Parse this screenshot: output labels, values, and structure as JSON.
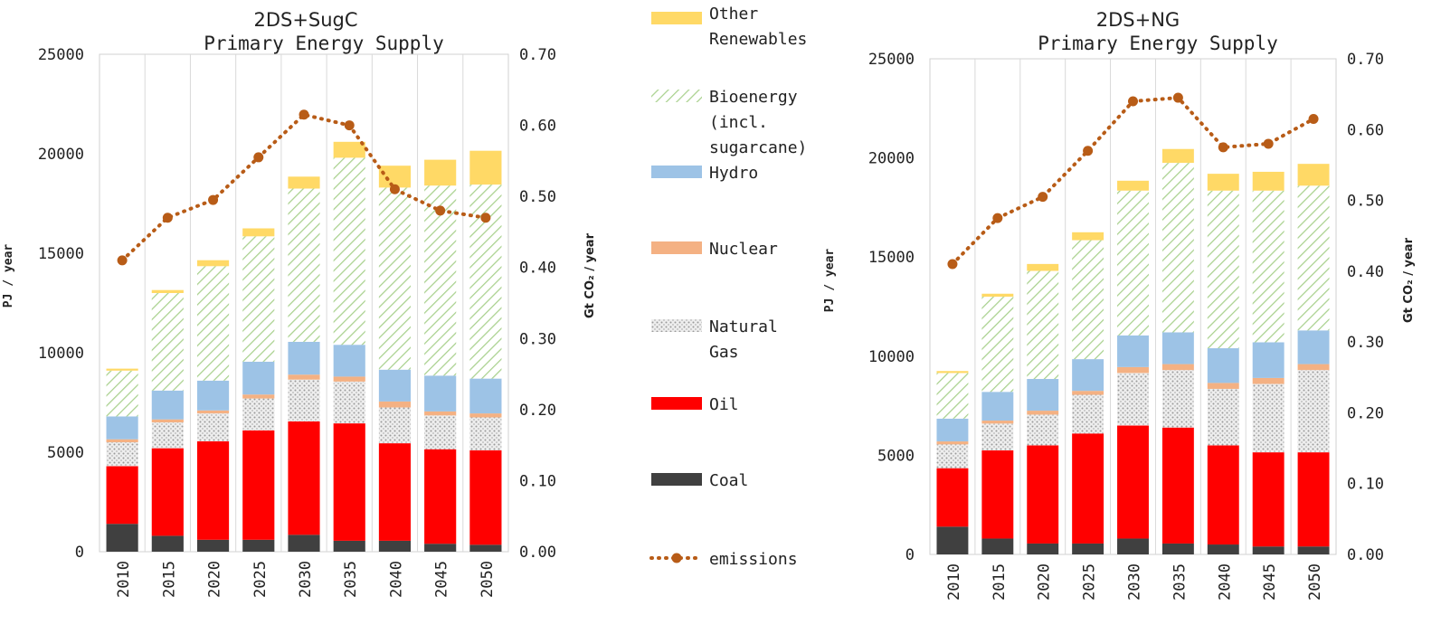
{
  "chart_data": [
    {
      "type": "bar",
      "stacked": true,
      "title": "2DS+SugC",
      "subtitle": "Primary Energy Supply",
      "ylabel": "PJ / year",
      "y2label": "Gt CO₂ / year",
      "ylim": [
        0,
        25000
      ],
      "y2lim": [
        0,
        0.7
      ],
      "yticks": [
        0,
        5000,
        10000,
        15000,
        20000,
        25000
      ],
      "y2ticks": [
        "0.00",
        "0.10",
        "0.20",
        "0.30",
        "0.40",
        "0.50",
        "0.60",
        "0.70"
      ],
      "grid": true,
      "categories": [
        "2010",
        "2015",
        "2020",
        "2025",
        "2030",
        "2035",
        "2040",
        "2045",
        "2050"
      ],
      "series": [
        {
          "name": "Coal",
          "values": [
            1400,
            800,
            600,
            600,
            850,
            550,
            550,
            400,
            350
          ]
        },
        {
          "name": "Oil",
          "values": [
            2900,
            4400,
            4950,
            5500,
            5700,
            5900,
            4900,
            4750,
            4750
          ]
        },
        {
          "name": "Natural Gas",
          "values": [
            1200,
            1300,
            1400,
            1600,
            2100,
            2100,
            1800,
            1700,
            1650
          ]
        },
        {
          "name": "Nuclear",
          "values": [
            150,
            150,
            150,
            200,
            250,
            250,
            300,
            200,
            200
          ]
        },
        {
          "name": "Hydro",
          "values": [
            1150,
            1450,
            1500,
            1650,
            1650,
            1600,
            1600,
            1800,
            1750
          ]
        },
        {
          "name": "Bioenergy (incl. sugarcane)",
          "values": [
            2300,
            4900,
            5750,
            6300,
            7700,
            9400,
            9150,
            9550,
            9750
          ]
        },
        {
          "name": "Other Renewables",
          "values": [
            100,
            150,
            300,
            400,
            600,
            800,
            1100,
            1300,
            1700
          ]
        }
      ],
      "line_series": {
        "name": "emissions",
        "axis": "right",
        "values": [
          0.41,
          0.47,
          0.495,
          0.555,
          0.615,
          0.6,
          0.51,
          0.48,
          0.47
        ]
      }
    },
    {
      "type": "bar",
      "stacked": true,
      "title": "2DS+NG",
      "subtitle": "Primary Energy Supply",
      "ylabel": "PJ / year",
      "y2label": "Gt CO₂ / year",
      "ylim": [
        0,
        25000
      ],
      "y2lim": [
        0,
        0.7
      ],
      "yticks": [
        0,
        5000,
        10000,
        15000,
        20000,
        25000
      ],
      "y2ticks": [
        "0.00",
        "0.10",
        "0.20",
        "0.30",
        "0.40",
        "0.50",
        "0.60",
        "0.70"
      ],
      "grid": true,
      "categories": [
        "2010",
        "2015",
        "2020",
        "2025",
        "2030",
        "2035",
        "2040",
        "2045",
        "2050"
      ],
      "series": [
        {
          "name": "Coal",
          "values": [
            1400,
            800,
            550,
            550,
            800,
            550,
            500,
            400,
            400
          ]
        },
        {
          "name": "Oil",
          "values": [
            2950,
            4450,
            4950,
            5550,
            5700,
            5850,
            5000,
            4750,
            4750
          ]
        },
        {
          "name": "Natural Gas",
          "values": [
            1200,
            1350,
            1550,
            1950,
            2650,
            2900,
            2850,
            3450,
            4150
          ]
        },
        {
          "name": "Nuclear",
          "values": [
            150,
            150,
            200,
            200,
            300,
            300,
            300,
            300,
            300
          ]
        },
        {
          "name": "Hydro",
          "values": [
            1150,
            1450,
            1600,
            1600,
            1600,
            1600,
            1750,
            1800,
            1700
          ]
        },
        {
          "name": "Bioenergy (incl. sugarcane)",
          "values": [
            2300,
            4800,
            5450,
            6000,
            7300,
            8550,
            7950,
            7650,
            7300
          ]
        },
        {
          "name": "Other Renewables",
          "values": [
            100,
            150,
            350,
            400,
            500,
            700,
            850,
            950,
            1100
          ]
        }
      ],
      "line_series": {
        "name": "emissions",
        "axis": "right",
        "values": [
          0.41,
          0.475,
          0.505,
          0.57,
          0.64,
          0.645,
          0.575,
          0.58,
          0.615
        ]
      }
    }
  ],
  "legend": {
    "items": [
      {
        "label_lines": [
          "Other",
          "Renewables"
        ],
        "color": "#ffd966",
        "kind": "box"
      },
      {
        "label_lines": [
          "Bioenergy",
          "(incl.",
          "sugarcane)"
        ],
        "color": "#a9d18e",
        "kind": "hatch"
      },
      {
        "label_lines": [
          "Hydro"
        ],
        "color": "#9dc3e6",
        "kind": "box"
      },
      {
        "label_lines": [
          "Nuclear"
        ],
        "color": "#f4b183",
        "kind": "box"
      },
      {
        "label_lines": [
          "Natural",
          "Gas"
        ],
        "color": "#d9d9d9",
        "kind": "dots"
      },
      {
        "label_lines": [
          "Oil"
        ],
        "color": "#ff0000",
        "kind": "box"
      },
      {
        "label_lines": [
          "Coal"
        ],
        "color": "#404040",
        "kind": "box"
      },
      {
        "label_lines": [
          "emissions"
        ],
        "color": "#b85c17",
        "kind": "line"
      }
    ]
  },
  "colors": {
    "coal": "#404040",
    "oil": "#ff0000",
    "gas": "#d9d9d9",
    "nuclear": "#f4b183",
    "hydro": "#9dc3e6",
    "bio": "#a9d18e",
    "other": "#ffd966",
    "emissions": "#b85c17",
    "grid": "#d9d9d9"
  }
}
